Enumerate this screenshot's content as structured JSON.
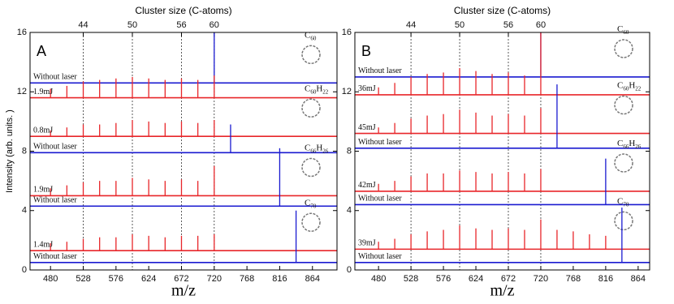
{
  "chart_data": [
    {
      "type": "spectrum",
      "panel": "A",
      "title": "Cluster size (C-atoms)",
      "xlabel": "m/z",
      "ylabel": "Intensity (arb. units. )",
      "xlim": [
        450,
        900
      ],
      "xticks": [
        480,
        528,
        576,
        624,
        672,
        720,
        768,
        816,
        864
      ],
      "ylim": [
        0,
        16
      ],
      "yticks": [
        0,
        4,
        8,
        12,
        16
      ],
      "topticks": [
        {
          "value": 528,
          "label": "44"
        },
        {
          "value": 600,
          "label": "50"
        },
        {
          "value": 672,
          "label": "56"
        },
        {
          "value": 720,
          "label": "60"
        }
      ],
      "series": [
        {
          "name": "Without laser",
          "color": "#1a1ad0",
          "baseline": 12.6,
          "x": [
            720
          ],
          "values": [
            16
          ],
          "formula": [
            "C",
            "60"
          ]
        },
        {
          "name": "1.9mJ",
          "color": "#e8262a",
          "baseline": 11.6,
          "x": [
            480,
            504,
            528,
            552,
            576,
            600,
            624,
            648,
            672,
            696,
            720
          ],
          "values": [
            12.2,
            12.4,
            12.7,
            12.8,
            12.9,
            13.0,
            12.9,
            12.8,
            12.9,
            12.8,
            13.1
          ]
        },
        {
          "name": "0.8mJ",
          "color": "#e8262a",
          "baseline": 9.0,
          "x": [
            480,
            504,
            528,
            552,
            576,
            600,
            624,
            648,
            672,
            696,
            720
          ],
          "values": [
            9.4,
            9.6,
            9.8,
            9.8,
            9.9,
            10.1,
            10.0,
            9.9,
            10.0,
            9.9,
            10.1
          ],
          "formula": [
            "C",
            "60",
            "H",
            "22"
          ]
        },
        {
          "name": "Without laser",
          "color": "#1a1ad0",
          "baseline": 7.9,
          "x": [
            744
          ],
          "values": [
            9.8
          ]
        },
        {
          "name": "1.9mJ",
          "color": "#e8262a",
          "baseline": 5.0,
          "x": [
            480,
            504,
            528,
            552,
            576,
            600,
            624,
            648,
            672,
            696,
            720
          ],
          "values": [
            5.5,
            5.7,
            5.9,
            6.0,
            6.0,
            6.2,
            6.1,
            6.0,
            6.1,
            6.0,
            7.0
          ],
          "formula": [
            "C",
            "66",
            "H",
            "26"
          ]
        },
        {
          "name": "Without laser",
          "color": "#1a1ad0",
          "baseline": 4.3,
          "x": [
            816
          ],
          "values": [
            8.2
          ]
        },
        {
          "name": "1.4mJ",
          "color": "#e8262a",
          "baseline": 1.3,
          "x": [
            480,
            504,
            528,
            552,
            576,
            600,
            624,
            648,
            672,
            696,
            720
          ],
          "values": [
            1.8,
            1.9,
            2.1,
            2.2,
            2.2,
            2.4,
            2.3,
            2.2,
            2.3,
            2.3,
            2.4
          ],
          "formula": [
            "C",
            "70"
          ]
        },
        {
          "name": "Without laser",
          "color": "#1a1ad0",
          "baseline": 0.5,
          "x": [
            840
          ],
          "values": [
            4.0
          ]
        }
      ]
    },
    {
      "type": "spectrum",
      "panel": "B",
      "title": "Cluster size (C-atoms)",
      "xlabel": "m/z",
      "xlim": [
        445,
        881
      ],
      "xticks": [
        480,
        528,
        576,
        624,
        672,
        720,
        768,
        816,
        864
      ],
      "ylim": [
        0,
        16
      ],
      "yticks": [
        0,
        4,
        8,
        12,
        16
      ],
      "topticks": [
        {
          "value": 528,
          "label": "44"
        },
        {
          "value": 600,
          "label": "50"
        },
        {
          "value": 672,
          "label": "56"
        },
        {
          "value": 720,
          "label": "60"
        }
      ],
      "series": [
        {
          "name": "Without laser",
          "color": "#1a1ad0",
          "baseline": 13.0,
          "x": [
            720
          ],
          "values": [
            16
          ],
          "formula": [
            "C",
            "60"
          ]
        },
        {
          "name": "36mJ",
          "color": "#e8262a",
          "baseline": 11.8,
          "x": [
            480,
            504,
            528,
            552,
            576,
            600,
            624,
            648,
            672,
            696,
            720
          ],
          "values": [
            12.3,
            12.6,
            13.0,
            13.2,
            13.3,
            13.6,
            13.4,
            13.2,
            13.3,
            13.1,
            16
          ]
        },
        {
          "name": "45mJ",
          "color": "#e8262a",
          "baseline": 9.2,
          "x": [
            480,
            504,
            528,
            552,
            576,
            600,
            624,
            648,
            672,
            696,
            720
          ],
          "values": [
            9.6,
            9.9,
            10.2,
            10.4,
            10.5,
            10.8,
            10.6,
            10.4,
            10.5,
            10.4,
            10.9
          ],
          "formula": [
            "C",
            "60",
            "H",
            "22"
          ]
        },
        {
          "name": "Without laser",
          "color": "#1a1ad0",
          "baseline": 8.2,
          "x": [
            744
          ],
          "values": [
            12.5
          ]
        },
        {
          "name": "42mJ",
          "color": "#e8262a",
          "baseline": 5.3,
          "x": [
            480,
            504,
            528,
            552,
            576,
            600,
            624,
            648,
            672,
            696,
            720
          ],
          "values": [
            5.8,
            6.0,
            6.3,
            6.5,
            6.5,
            6.7,
            6.6,
            6.5,
            6.6,
            6.5,
            6.8
          ],
          "formula": [
            "C",
            "66",
            "H",
            "26"
          ]
        },
        {
          "name": "Without laser",
          "color": "#1a1ad0",
          "baseline": 4.4,
          "x": [
            816
          ],
          "values": [
            7.5
          ]
        },
        {
          "name": "39mJ",
          "color": "#e8262a",
          "baseline": 1.4,
          "x": [
            480,
            504,
            528,
            552,
            576,
            600,
            624,
            648,
            672,
            696,
            720,
            744,
            768,
            792,
            816
          ],
          "values": [
            1.9,
            2.1,
            2.4,
            2.6,
            2.7,
            3.0,
            2.8,
            2.7,
            2.8,
            2.7,
            3.4,
            2.7,
            2.6,
            2.4,
            2.3
          ],
          "formula": [
            "C",
            "70"
          ]
        },
        {
          "name": "Without laser",
          "color": "#1a1ad0",
          "baseline": 0.5,
          "x": [
            840
          ],
          "values": [
            4.2
          ]
        }
      ]
    }
  ]
}
